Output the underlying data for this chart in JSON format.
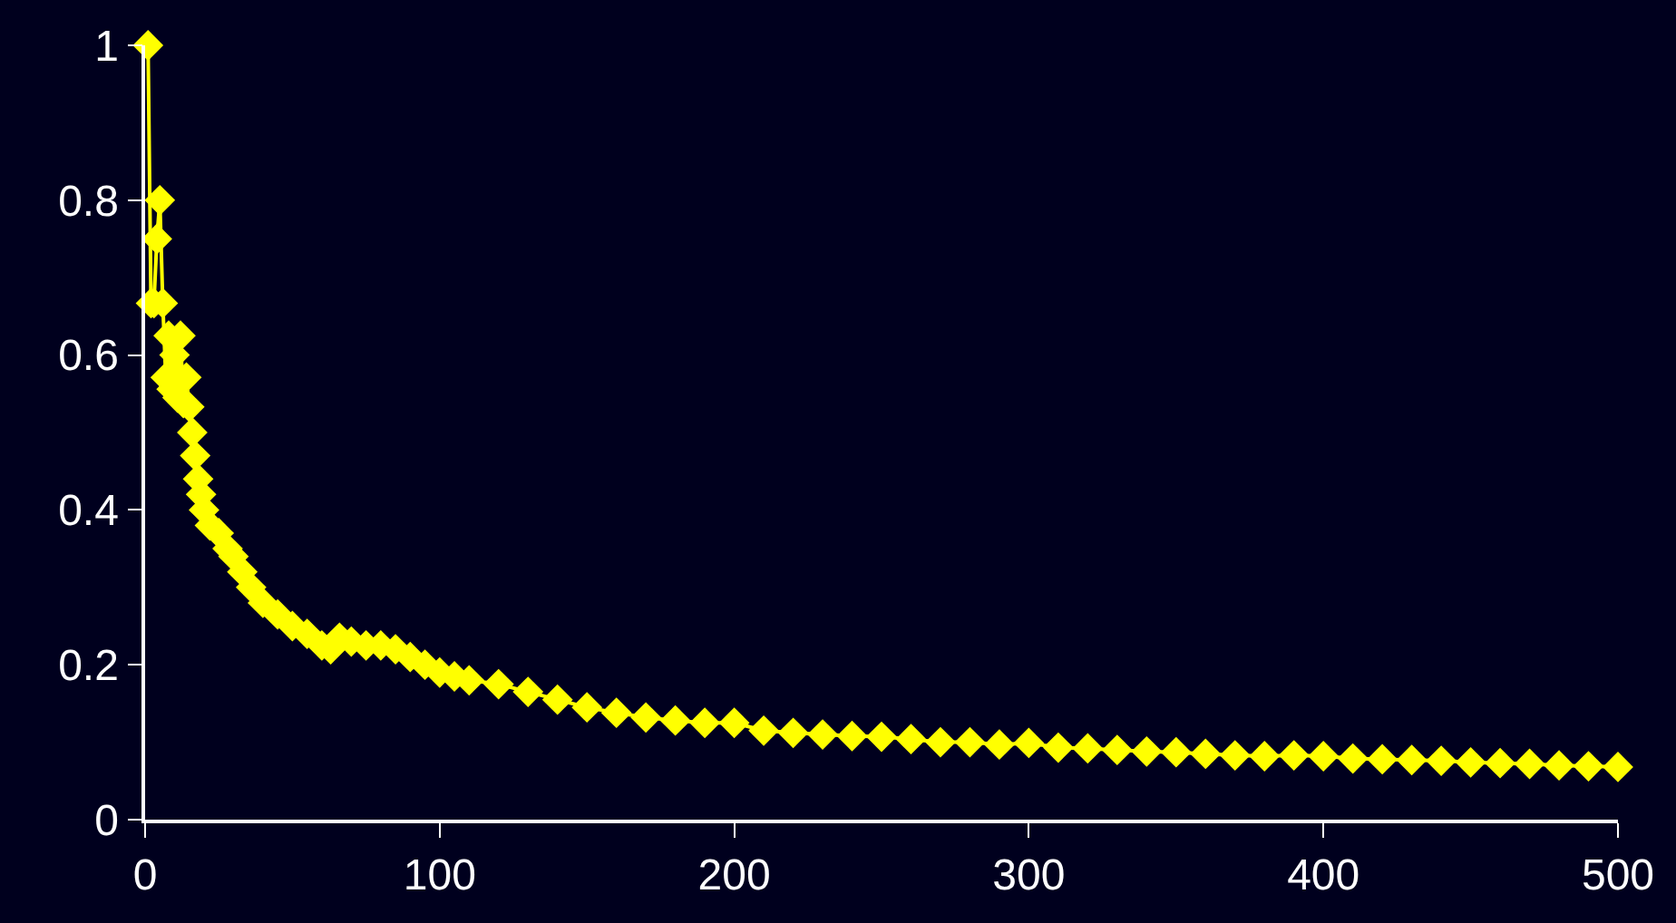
{
  "chart_data": {
    "type": "line",
    "x": [
      1,
      2,
      3,
      4,
      5,
      6,
      7,
      8,
      9,
      10,
      11,
      12,
      13,
      14,
      15,
      16,
      17,
      18,
      19,
      20,
      22,
      25,
      28,
      30,
      33,
      36,
      40,
      45,
      50,
      55,
      60,
      63,
      66,
      70,
      75,
      80,
      85,
      90,
      95,
      100,
      105,
      110,
      120,
      130,
      140,
      150,
      160,
      170,
      180,
      190,
      200,
      210,
      220,
      230,
      240,
      250,
      260,
      270,
      280,
      290,
      300,
      310,
      320,
      330,
      340,
      350,
      360,
      370,
      380,
      390,
      400,
      410,
      420,
      430,
      440,
      450,
      460,
      470,
      480,
      490,
      500
    ],
    "series": [
      {
        "color": "#ffff00",
        "values": [
          1.0,
          0.667,
          0.667,
          0.75,
          0.8,
          0.667,
          0.571,
          0.625,
          0.556,
          0.6,
          0.545,
          0.625,
          0.538,
          0.571,
          0.533,
          0.5,
          0.47,
          0.44,
          0.42,
          0.4,
          0.38,
          0.37,
          0.35,
          0.34,
          0.32,
          0.3,
          0.28,
          0.265,
          0.25,
          0.24,
          0.225,
          0.22,
          0.235,
          0.23,
          0.225,
          0.225,
          0.22,
          0.21,
          0.2,
          0.19,
          0.185,
          0.18,
          0.175,
          0.165,
          0.155,
          0.145,
          0.138,
          0.132,
          0.128,
          0.125,
          0.125,
          0.115,
          0.112,
          0.11,
          0.108,
          0.107,
          0.104,
          0.1,
          0.1,
          0.097,
          0.099,
          0.093,
          0.092,
          0.09,
          0.088,
          0.087,
          0.085,
          0.083,
          0.082,
          0.083,
          0.082,
          0.079,
          0.078,
          0.077,
          0.076,
          0.074,
          0.073,
          0.072,
          0.07,
          0.069,
          0.068
        ]
      }
    ],
    "xlim": [
      0,
      500
    ],
    "xticks": [
      0,
      100,
      200,
      300,
      400,
      500
    ],
    "ylim": [
      0,
      1
    ],
    "yticks": [
      0,
      0.2,
      0.4,
      0.6,
      0.8,
      1
    ],
    "marker": "diamond",
    "line_style": "solid",
    "grid": false,
    "legend": false
  }
}
